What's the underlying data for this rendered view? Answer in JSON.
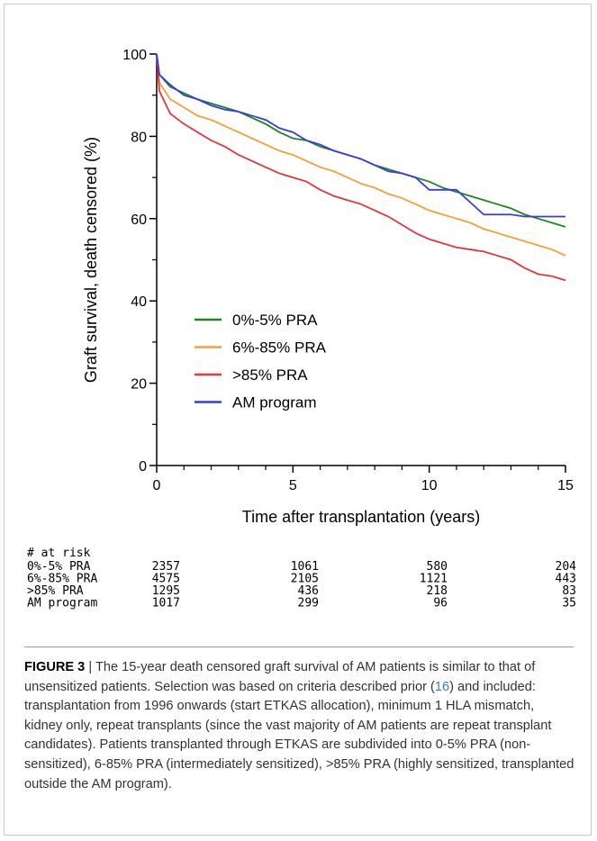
{
  "chart_data": {
    "type": "line",
    "xlabel": "Time after transplantation (years)",
    "ylabel": "Graft survival, death censored (%)",
    "x": [
      0,
      0.1,
      0.5,
      1,
      1.5,
      2,
      2.5,
      3,
      3.5,
      4,
      4.5,
      5,
      5.5,
      6,
      6.5,
      7,
      7.5,
      8,
      8.5,
      9,
      9.5,
      10,
      10.5,
      11,
      11.5,
      12,
      12.5,
      13,
      13.5,
      14,
      14.5,
      15
    ],
    "series": [
      {
        "name": "0%-5% PRA",
        "color": "#1a8a1a",
        "values": [
          100,
          95,
          92,
          90.5,
          89,
          88,
          87,
          86,
          84.5,
          83,
          81,
          79.5,
          79,
          77.5,
          76.5,
          75.5,
          74.5,
          73,
          72,
          71,
          70,
          69,
          67.5,
          66.5,
          65.5,
          64.5,
          63.5,
          62.5,
          61,
          60,
          59,
          58
        ]
      },
      {
        "name": "6%-85% PRA",
        "color": "#f5a030",
        "values": [
          100,
          93,
          89,
          87,
          85,
          84,
          82.5,
          81,
          79.5,
          78,
          76.5,
          75.5,
          74,
          72.5,
          71.5,
          70,
          68.5,
          67.5,
          66,
          65,
          63.5,
          62,
          61,
          60,
          59,
          57.5,
          56.5,
          55.5,
          54.5,
          53.5,
          52.5,
          51
        ]
      },
      {
        "name": ">85% PRA",
        "color": "#e8343a",
        "values": [
          100,
          91,
          85.5,
          83,
          81,
          79,
          77.5,
          75.5,
          74,
          72.5,
          71,
          70,
          69,
          67,
          65.5,
          64.5,
          63.5,
          62,
          60.5,
          58.5,
          56.5,
          55,
          54,
          53,
          52.5,
          52,
          51,
          50,
          48,
          46.5,
          46,
          45
        ]
      },
      {
        "name": "AM program",
        "color": "#3a3ae8",
        "values": [
          100,
          95,
          92.5,
          90,
          89,
          87.5,
          86.5,
          86,
          85,
          84,
          82,
          81,
          79,
          78,
          76.5,
          75.5,
          74.5,
          73,
          71.5,
          71,
          70,
          67,
          67,
          67,
          64,
          61,
          61,
          61,
          60.5,
          60.5,
          60.5,
          60.5
        ]
      }
    ],
    "xlim": [
      0,
      15
    ],
    "xticks": [
      0,
      5,
      10,
      15
    ],
    "xminorticks": [
      1,
      2,
      3,
      4,
      6,
      7,
      8,
      9,
      11,
      12,
      13,
      14
    ],
    "ylim": [
      0,
      100
    ],
    "yticks": [
      0,
      20,
      40,
      60,
      80,
      100
    ],
    "yminorticks": [
      10,
      30,
      50,
      70,
      90
    ],
    "legend": "lower left"
  },
  "at_risk": {
    "title": "# at risk",
    "rows": [
      {
        "name": "0%-5% PRA",
        "values": [
          2357,
          1061,
          580,
          204
        ]
      },
      {
        "name": "6%-85% PRA",
        "values": [
          4575,
          2105,
          1121,
          443
        ]
      },
      {
        "name": ">85% PRA",
        "values": [
          1295,
          436,
          218,
          83
        ]
      },
      {
        "name": "AM program",
        "values": [
          1017,
          299,
          96,
          35
        ]
      }
    ]
  },
  "caption": {
    "label": "FIGURE 3",
    "separator": "|",
    "text_before": "The 15-year death censored graft survival of AM patients is similar to that of unsensitized patients. Selection was based on criteria described prior (",
    "ref": "16",
    "text_after": ") and included: transplantation from 1996 onwards (start ETKAS allocation), minimum 1 HLA mismatch, kidney only, repeat transplants (since the vast majority of AM patients are repeat transplant candidates). Patients transplanted through ETKAS are subdivided into 0-5% PRA (non-sensitized), 6-85% PRA (intermediately sensitized), >85% PRA (highly sensitized, transplanted outside the AM program)."
  }
}
